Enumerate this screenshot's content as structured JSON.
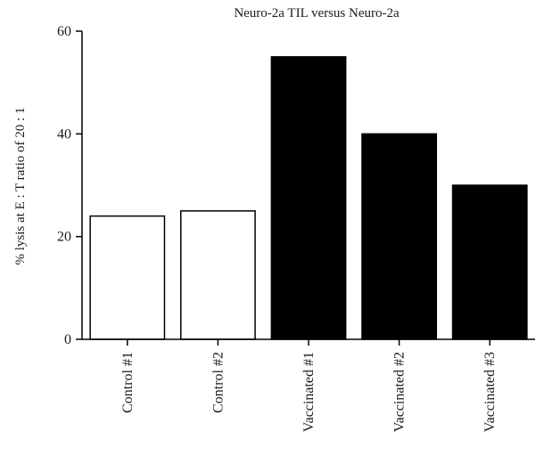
{
  "chart_data": {
    "type": "bar",
    "title": "Neuro-2a TIL versus Neuro-2a",
    "ylabel": "% lysis at E : T ratio of 20 : 1",
    "xlabel": "",
    "ylim": [
      0,
      60
    ],
    "yticks": [
      0,
      20,
      40,
      60
    ],
    "categories": [
      "Control #1",
      "Control #2",
      "Vaccinated #1",
      "Vaccinated #2",
      "Vaccinated #3"
    ],
    "values": [
      24,
      25,
      55,
      40,
      30
    ],
    "bar_fills": [
      "#ffffff",
      "#ffffff",
      "#000000",
      "#000000",
      "#000000"
    ],
    "grid": false,
    "legend": "none"
  }
}
